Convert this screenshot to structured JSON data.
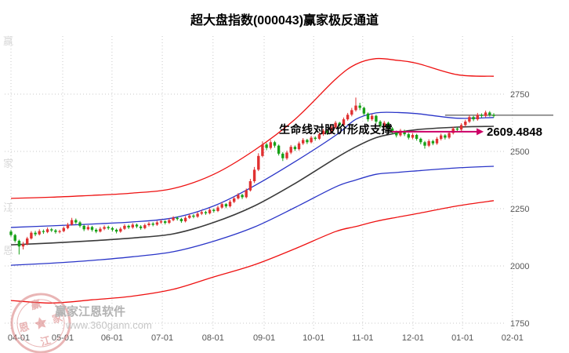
{
  "title": "超大盘指数(000043)赢家极反通道",
  "annotation": {
    "text": "生命线对股价形成支撑",
    "price_label": "2609.4848"
  },
  "watermark": {
    "brand": "赢家江恩软件",
    "url": "www.360gann.com",
    "seal_chars": [
      "赢",
      "家",
      "江",
      "恩"
    ],
    "side_chars": [
      "赢",
      "家",
      "江",
      "恩"
    ]
  },
  "colors": {
    "up": "#e03131",
    "down": "#16a016",
    "outer_band": "#ee1111",
    "inner_band": "#2a35c8",
    "life_line": "#3a3a3a",
    "arrow": "#cc0066",
    "grid": "#c8c8c8",
    "level_line": "#333333",
    "tick_text": "#555555",
    "seal": "#d87a7a"
  },
  "chart_data": {
    "type": "candlestick",
    "title": "超大盘指数(000043)赢家极反通道",
    "xlabel": "",
    "ylabel": "",
    "ylim": [
      1700,
      2960
    ],
    "y_ticks": [
      2750,
      2500,
      2250,
      2000,
      1750
    ],
    "x_ticks": [
      {
        "label": "04-01",
        "i": 0
      },
      {
        "label": "05-01",
        "i": 12.75
      },
      {
        "label": "06-01",
        "i": 24.9
      },
      {
        "label": "07-01",
        "i": 37.3
      },
      {
        "label": "08-01",
        "i": 49.8
      },
      {
        "label": "09-01",
        "i": 62.4
      },
      {
        "label": "10-01",
        "i": 74.6
      },
      {
        "label": "11-01",
        "i": 86.7
      },
      {
        "label": "12-01",
        "i": 99.1
      },
      {
        "label": "01-01",
        "i": 111.3
      },
      {
        "label": "02-01",
        "i": 123.6
      }
    ],
    "candles": [
      [
        2150,
        2158,
        2128,
        2135
      ],
      [
        2135,
        2140,
        2102,
        2110
      ],
      [
        2110,
        2115,
        2050,
        2085
      ],
      [
        2085,
        2105,
        2072,
        2095
      ],
      [
        2095,
        2127,
        2090,
        2120
      ],
      [
        2120,
        2152,
        2115,
        2145
      ],
      [
        2145,
        2153,
        2130,
        2138
      ],
      [
        2138,
        2160,
        2133,
        2152
      ],
      [
        2152,
        2159,
        2140,
        2148
      ],
      [
        2148,
        2168,
        2143,
        2160
      ],
      [
        2160,
        2166,
        2148,
        2155
      ],
      [
        2155,
        2161,
        2141,
        2148
      ],
      [
        2148,
        2158,
        2142,
        2152
      ],
      [
        2152,
        2172,
        2147,
        2165
      ],
      [
        2165,
        2188,
        2160,
        2180
      ],
      [
        2180,
        2210,
        2176,
        2200
      ],
      [
        2200,
        2207,
        2183,
        2190
      ],
      [
        2190,
        2196,
        2168,
        2175
      ],
      [
        2175,
        2180,
        2152,
        2160
      ],
      [
        2160,
        2178,
        2155,
        2170
      ],
      [
        2170,
        2175,
        2150,
        2158
      ],
      [
        2158,
        2164,
        2143,
        2150
      ],
      [
        2150,
        2170,
        2146,
        2162
      ],
      [
        2162,
        2177,
        2156,
        2170
      ],
      [
        2170,
        2176,
        2158,
        2165
      ],
      [
        2165,
        2171,
        2150,
        2158
      ],
      [
        2158,
        2163,
        2142,
        2150
      ],
      [
        2150,
        2169,
        2145,
        2162
      ],
      [
        2162,
        2182,
        2157,
        2175
      ],
      [
        2175,
        2180,
        2161,
        2168
      ],
      [
        2168,
        2187,
        2162,
        2180
      ],
      [
        2180,
        2185,
        2165,
        2172
      ],
      [
        2172,
        2178,
        2158,
        2165
      ],
      [
        2165,
        2185,
        2160,
        2178
      ],
      [
        2178,
        2192,
        2172,
        2185
      ],
      [
        2185,
        2191,
        2173,
        2180
      ],
      [
        2180,
        2197,
        2175,
        2190
      ],
      [
        2190,
        2203,
        2184,
        2195
      ],
      [
        2195,
        2200,
        2181,
        2188
      ],
      [
        2188,
        2208,
        2183,
        2200
      ],
      [
        2200,
        2217,
        2195,
        2210
      ],
      [
        2210,
        2216,
        2198,
        2205
      ],
      [
        2205,
        2210,
        2188,
        2195
      ],
      [
        2195,
        2218,
        2190,
        2210
      ],
      [
        2210,
        2227,
        2205,
        2220
      ],
      [
        2220,
        2226,
        2208,
        2215
      ],
      [
        2215,
        2235,
        2210,
        2228
      ],
      [
        2228,
        2243,
        2222,
        2235
      ],
      [
        2235,
        2241,
        2223,
        2230
      ],
      [
        2230,
        2252,
        2225,
        2245
      ],
      [
        2245,
        2251,
        2233,
        2240
      ],
      [
        2240,
        2263,
        2235,
        2255
      ],
      [
        2255,
        2278,
        2250,
        2270
      ],
      [
        2270,
        2274,
        2252,
        2260
      ],
      [
        2260,
        2288,
        2255,
        2280
      ],
      [
        2280,
        2303,
        2274,
        2295
      ],
      [
        2295,
        2318,
        2290,
        2310
      ],
      [
        2310,
        2315,
        2292,
        2300
      ],
      [
        2300,
        2338,
        2295,
        2330
      ],
      [
        2330,
        2380,
        2325,
        2370
      ],
      [
        2370,
        2432,
        2362,
        2420
      ],
      [
        2420,
        2492,
        2414,
        2480
      ],
      [
        2480,
        2544,
        2474,
        2530
      ],
      [
        2530,
        2537,
        2505,
        2515
      ],
      [
        2515,
        2550,
        2508,
        2540
      ],
      [
        2540,
        2546,
        2516,
        2525
      ],
      [
        2525,
        2530,
        2482,
        2490
      ],
      [
        2490,
        2497,
        2458,
        2470
      ],
      [
        2470,
        2503,
        2463,
        2495
      ],
      [
        2495,
        2528,
        2488,
        2520
      ],
      [
        2520,
        2526,
        2502,
        2510
      ],
      [
        2510,
        2543,
        2504,
        2535
      ],
      [
        2535,
        2558,
        2528,
        2550
      ],
      [
        2550,
        2555,
        2532,
        2540
      ],
      [
        2540,
        2568,
        2535,
        2560
      ],
      [
        2560,
        2566,
        2547,
        2555
      ],
      [
        2555,
        2583,
        2550,
        2575
      ],
      [
        2575,
        2598,
        2568,
        2590
      ],
      [
        2590,
        2594,
        2572,
        2580
      ],
      [
        2580,
        2613,
        2575,
        2605
      ],
      [
        2605,
        2633,
        2599,
        2625
      ],
      [
        2625,
        2629,
        2607,
        2615
      ],
      [
        2615,
        2648,
        2610,
        2640
      ],
      [
        2640,
        2668,
        2634,
        2660
      ],
      [
        2660,
        2690,
        2653,
        2680
      ],
      [
        2680,
        2735,
        2674,
        2700
      ],
      [
        2700,
        2712,
        2680,
        2690
      ],
      [
        2690,
        2695,
        2656,
        2665
      ],
      [
        2665,
        2670,
        2630,
        2640
      ],
      [
        2640,
        2663,
        2633,
        2655
      ],
      [
        2655,
        2660,
        2622,
        2630
      ],
      [
        2630,
        2636,
        2601,
        2610
      ],
      [
        2610,
        2633,
        2603,
        2625
      ],
      [
        2625,
        2630,
        2592,
        2600
      ],
      [
        2600,
        2606,
        2577,
        2585
      ],
      [
        2585,
        2591,
        2561,
        2570
      ],
      [
        2570,
        2598,
        2564,
        2590
      ],
      [
        2590,
        2595,
        2567,
        2575
      ],
      [
        2575,
        2581,
        2552,
        2560
      ],
      [
        2560,
        2580,
        2553,
        2572
      ],
      [
        2572,
        2577,
        2547,
        2555
      ],
      [
        2555,
        2560,
        2531,
        2540
      ],
      [
        2540,
        2546,
        2512,
        2525
      ],
      [
        2525,
        2553,
        2519,
        2545
      ],
      [
        2545,
        2551,
        2527,
        2535
      ],
      [
        2535,
        2563,
        2529,
        2555
      ],
      [
        2555,
        2578,
        2548,
        2570
      ],
      [
        2570,
        2575,
        2552,
        2560
      ],
      [
        2560,
        2588,
        2554,
        2580
      ],
      [
        2580,
        2608,
        2574,
        2600
      ],
      [
        2600,
        2606,
        2587,
        2595
      ],
      [
        2595,
        2623,
        2589,
        2615
      ],
      [
        2615,
        2638,
        2608,
        2630
      ],
      [
        2630,
        2658,
        2624,
        2650
      ],
      [
        2650,
        2655,
        2632,
        2640
      ],
      [
        2640,
        2668,
        2634,
        2660
      ],
      [
        2660,
        2666,
        2647,
        2655
      ],
      [
        2655,
        2678,
        2649,
        2670
      ],
      [
        2670,
        2676,
        2652,
        2660
      ],
      [
        2660,
        2667,
        2648,
        2655
      ]
    ],
    "band_i": [
      0,
      10,
      20,
      30,
      40,
      50,
      60,
      70,
      80,
      85,
      90,
      95,
      100,
      110,
      119
    ],
    "bands": [
      {
        "name": "upper-outer-band",
        "color_key": "outer_band",
        "price": [
          2295,
          2300,
          2308,
          2318,
          2338,
          2400,
          2505,
          2640,
          2815,
          2880,
          2905,
          2898,
          2885,
          2835,
          2828
        ]
      },
      {
        "name": "upper-inner-band",
        "color_key": "inner_band",
        "price": [
          2168,
          2175,
          2183,
          2192,
          2210,
          2262,
          2350,
          2455,
          2570,
          2640,
          2668,
          2670,
          2665,
          2645,
          2648
        ]
      },
      {
        "name": "life-line",
        "color_key": "life_line",
        "price": [
          2092,
          2100,
          2110,
          2122,
          2140,
          2190,
          2262,
          2360,
          2470,
          2520,
          2560,
          2580,
          2595,
          2606,
          2609.5
        ]
      },
      {
        "name": "lower-inner-band",
        "color_key": "inner_band",
        "price": [
          2003,
          2012,
          2024,
          2040,
          2062,
          2108,
          2170,
          2255,
          2345,
          2375,
          2400,
          2408,
          2415,
          2428,
          2435
        ]
      },
      {
        "name": "lower-outer-band",
        "color_key": "outer_band",
        "price": [
          1849,
          1838,
          1852,
          1868,
          1898,
          1952,
          2005,
          2075,
          2150,
          2172,
          2195,
          2212,
          2228,
          2262,
          2285
        ]
      }
    ],
    "level_line": {
      "price": 2658,
      "i_from": 107
    },
    "support_arrow": {
      "price": 2586,
      "i_from": 93.5,
      "i_to": 116.5
    },
    "support_value": 2609.4848
  }
}
